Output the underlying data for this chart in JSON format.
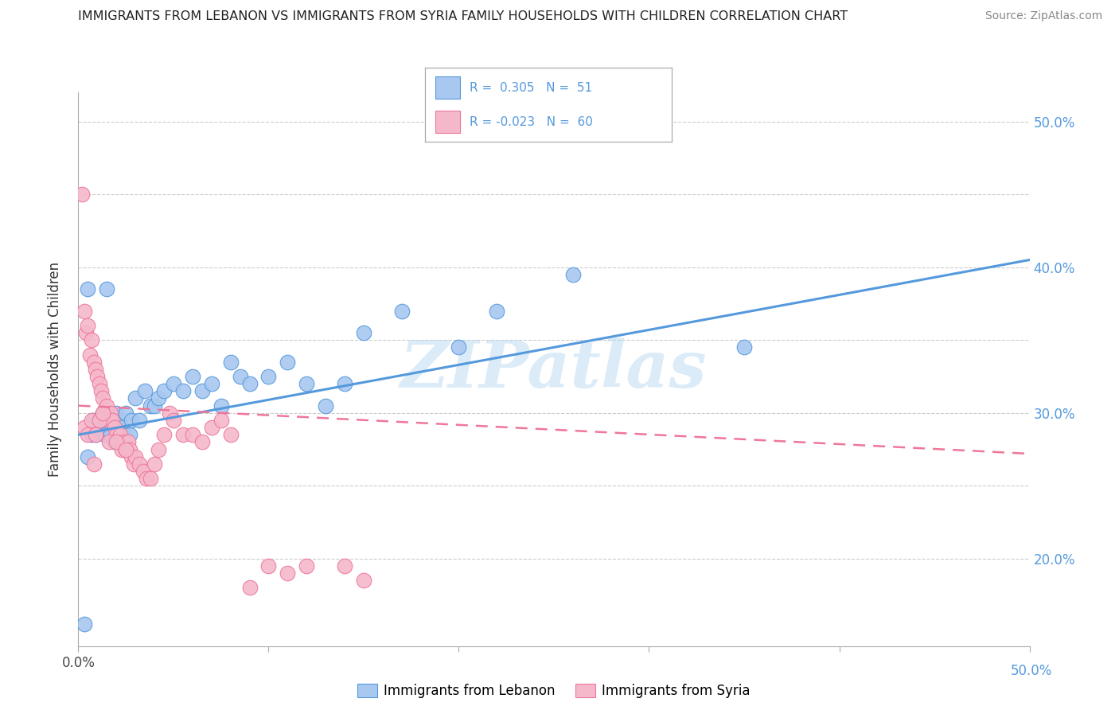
{
  "title": "IMMIGRANTS FROM LEBANON VS IMMIGRANTS FROM SYRIA FAMILY HOUSEHOLDS WITH CHILDREN CORRELATION CHART",
  "source": "Source: ZipAtlas.com",
  "ylabel": "Family Households with Children",
  "xlim": [
    0.0,
    0.5
  ],
  "ylim": [
    0.14,
    0.52
  ],
  "color_lebanon": "#a8c8f0",
  "color_syria": "#f5b8cb",
  "line_color_lebanon": "#5599dd",
  "line_color_syria": "#ee7799",
  "watermark_text": "ZIPatlas",
  "lebanon_r": 0.305,
  "lebanon_n": 51,
  "syria_r": -0.023,
  "syria_n": 60,
  "lebanon_x": [
    0.003,
    0.005,
    0.007,
    0.008,
    0.009,
    0.01,
    0.012,
    0.013,
    0.014,
    0.015,
    0.016,
    0.017,
    0.018,
    0.019,
    0.02,
    0.021,
    0.022,
    0.023,
    0.024,
    0.025,
    0.027,
    0.028,
    0.03,
    0.032,
    0.035,
    0.038,
    0.04,
    0.042,
    0.045,
    0.05,
    0.055,
    0.06,
    0.065,
    0.07,
    0.075,
    0.08,
    0.085,
    0.09,
    0.1,
    0.11,
    0.12,
    0.13,
    0.14,
    0.15,
    0.17,
    0.2,
    0.22,
    0.26,
    0.35,
    0.005,
    0.015
  ],
  "lebanon_y": [
    0.155,
    0.27,
    0.285,
    0.295,
    0.285,
    0.29,
    0.295,
    0.3,
    0.285,
    0.295,
    0.3,
    0.285,
    0.295,
    0.28,
    0.3,
    0.295,
    0.285,
    0.29,
    0.285,
    0.3,
    0.285,
    0.295,
    0.31,
    0.295,
    0.315,
    0.305,
    0.305,
    0.31,
    0.315,
    0.32,
    0.315,
    0.325,
    0.315,
    0.32,
    0.305,
    0.335,
    0.325,
    0.32,
    0.325,
    0.335,
    0.32,
    0.305,
    0.32,
    0.355,
    0.37,
    0.345,
    0.37,
    0.395,
    0.345,
    0.385,
    0.385
  ],
  "syria_x": [
    0.002,
    0.003,
    0.004,
    0.005,
    0.006,
    0.007,
    0.008,
    0.009,
    0.01,
    0.011,
    0.012,
    0.013,
    0.014,
    0.015,
    0.016,
    0.017,
    0.018,
    0.019,
    0.02,
    0.021,
    0.022,
    0.023,
    0.024,
    0.025,
    0.026,
    0.027,
    0.028,
    0.029,
    0.03,
    0.032,
    0.034,
    0.036,
    0.038,
    0.04,
    0.042,
    0.045,
    0.048,
    0.05,
    0.055,
    0.06,
    0.065,
    0.07,
    0.075,
    0.08,
    0.09,
    0.1,
    0.11,
    0.12,
    0.14,
    0.15,
    0.003,
    0.005,
    0.007,
    0.009,
    0.011,
    0.013,
    0.016,
    0.008,
    0.02,
    0.025
  ],
  "syria_y": [
    0.45,
    0.37,
    0.355,
    0.36,
    0.34,
    0.35,
    0.335,
    0.33,
    0.325,
    0.32,
    0.315,
    0.31,
    0.3,
    0.305,
    0.295,
    0.3,
    0.295,
    0.29,
    0.285,
    0.28,
    0.285,
    0.275,
    0.28,
    0.275,
    0.28,
    0.275,
    0.27,
    0.265,
    0.27,
    0.265,
    0.26,
    0.255,
    0.255,
    0.265,
    0.275,
    0.285,
    0.3,
    0.295,
    0.285,
    0.285,
    0.28,
    0.29,
    0.295,
    0.285,
    0.18,
    0.195,
    0.19,
    0.195,
    0.195,
    0.185,
    0.29,
    0.285,
    0.295,
    0.285,
    0.295,
    0.3,
    0.28,
    0.265,
    0.28,
    0.275
  ]
}
